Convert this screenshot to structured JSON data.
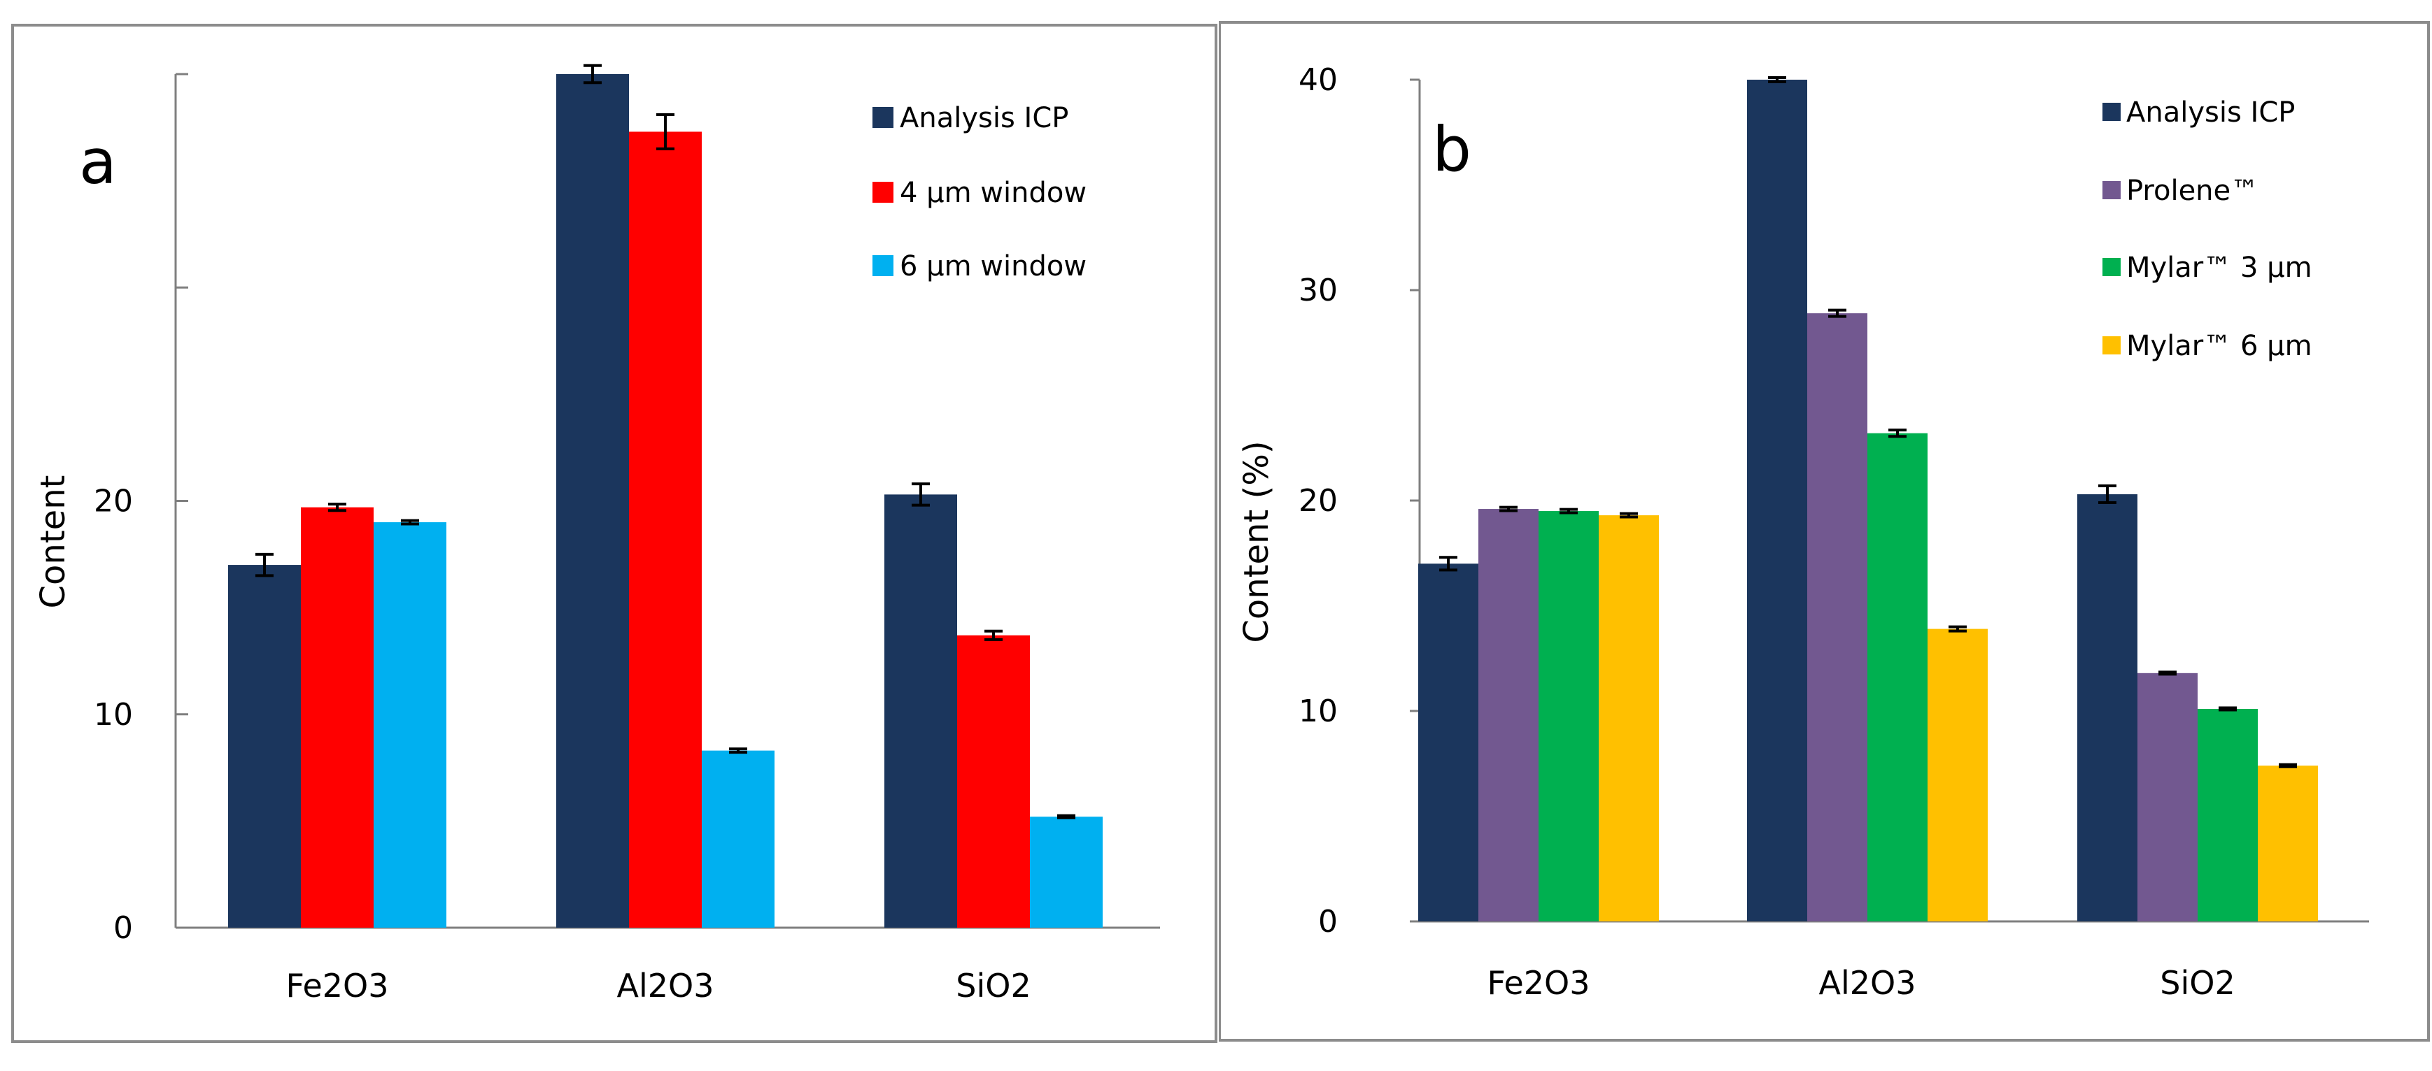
{
  "chart_data": [
    {
      "type": "bar",
      "panel_label": "a",
      "title": "",
      "xlabel": "",
      "ylabel": "Content",
      "categories": [
        "Fe2O3",
        "Al2O3",
        "SiO2"
      ],
      "ylim": [
        0,
        40
      ],
      "yticks": [
        {
          "value": 0,
          "label": "0"
        },
        {
          "value": 10,
          "label": "10"
        },
        {
          "value": 20,
          "label": "20"
        },
        {
          "value": 30,
          "label": ""
        },
        {
          "value": 40,
          "label": ""
        }
      ],
      "series": [
        {
          "name": "Analysis ICP",
          "color": "#1b365d",
          "values": [
            17.0,
            40.0,
            20.3
          ],
          "errors": [
            0.5,
            0.4,
            0.5
          ]
        },
        {
          "name": "4 µm window",
          "color": "#ff0000",
          "values": [
            19.7,
            37.3,
            13.7
          ],
          "errors": [
            0.15,
            0.8,
            0.2
          ]
        },
        {
          "name": "6 µm window",
          "color": "#00b0f0",
          "values": [
            19.0,
            8.3,
            5.2
          ],
          "errors": [
            0.08,
            0.08,
            0.05
          ]
        }
      ],
      "legend": "top-right"
    },
    {
      "type": "bar",
      "panel_label": "b",
      "title": "",
      "xlabel": "",
      "ylabel": "Content (%)",
      "categories": [
        "Fe2O3",
        "Al2O3",
        "SiO2"
      ],
      "ylim": [
        0,
        40
      ],
      "yticks": [
        {
          "value": 0,
          "label": "0"
        },
        {
          "value": 10,
          "label": "10"
        },
        {
          "value": 20,
          "label": "20"
        },
        {
          "value": 30,
          "label": "30"
        },
        {
          "value": 40,
          "label": "40"
        }
      ],
      "series": [
        {
          "name": "Analysis ICP",
          "color": "#1b365d",
          "values": [
            17.0,
            40.0,
            20.3
          ],
          "errors": [
            0.3,
            0.1,
            0.4
          ]
        },
        {
          "name": "Prolene™",
          "color": "#725890",
          "values": [
            19.6,
            28.9,
            11.8
          ],
          "errors": [
            0.08,
            0.15,
            0.05
          ]
        },
        {
          "name": "Mylar™ 3 µm",
          "color": "#00b050",
          "values": [
            19.5,
            23.2,
            10.1
          ],
          "errors": [
            0.08,
            0.15,
            0.05
          ]
        },
        {
          "name": "Mylar™ 6 µm",
          "color": "#ffc000",
          "values": [
            19.3,
            13.9,
            7.4
          ],
          "errors": [
            0.08,
            0.1,
            0.05
          ]
        }
      ],
      "legend": "top-right"
    }
  ]
}
